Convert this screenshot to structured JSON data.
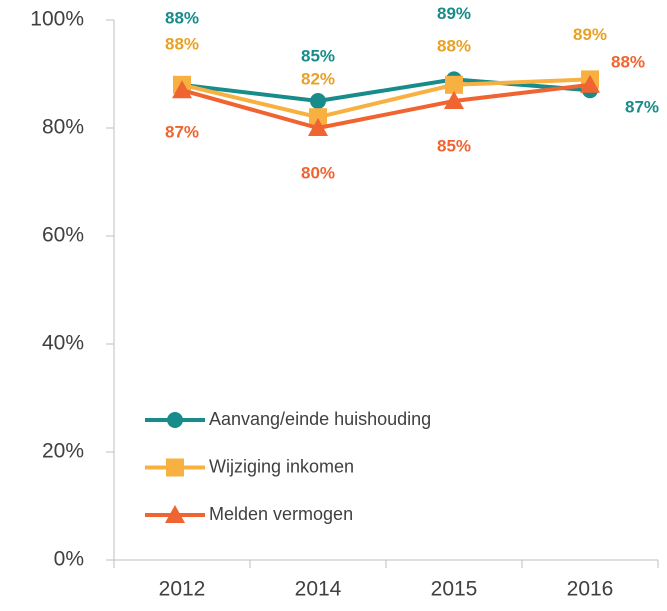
{
  "chart_data": {
    "type": "line",
    "categories": [
      "2012",
      "2014",
      "2015",
      "2016"
    ],
    "ylim": [
      0,
      100
    ],
    "yticks": [
      {
        "value": 0,
        "label": "0%"
      },
      {
        "value": 20,
        "label": "20%"
      },
      {
        "value": 40,
        "label": "40%"
      },
      {
        "value": 60,
        "label": "60%"
      },
      {
        "value": 80,
        "label": "80%"
      },
      {
        "value": 100,
        "label": "100%"
      }
    ],
    "legend": "lower left",
    "series": [
      {
        "name": "Aanvang/einde huishouding",
        "color": "#178c8a",
        "marker": "circle",
        "values": [
          88,
          85,
          89,
          87
        ],
        "value_labels": [
          "88%",
          "85%",
          "89%",
          "87%"
        ]
      },
      {
        "name": "Wijziging inkomen",
        "color": "#f8b040",
        "marker": "square",
        "values": [
          88,
          82,
          88,
          89
        ],
        "value_labels": [
          "88%",
          "82%",
          "88%",
          "89%"
        ]
      },
      {
        "name": "Melden vermogen",
        "color": "#ef6430",
        "marker": "triangle",
        "values": [
          87,
          80,
          85,
          88
        ],
        "value_labels": [
          "87%",
          "80%",
          "85%",
          "88%"
        ]
      }
    ]
  }
}
